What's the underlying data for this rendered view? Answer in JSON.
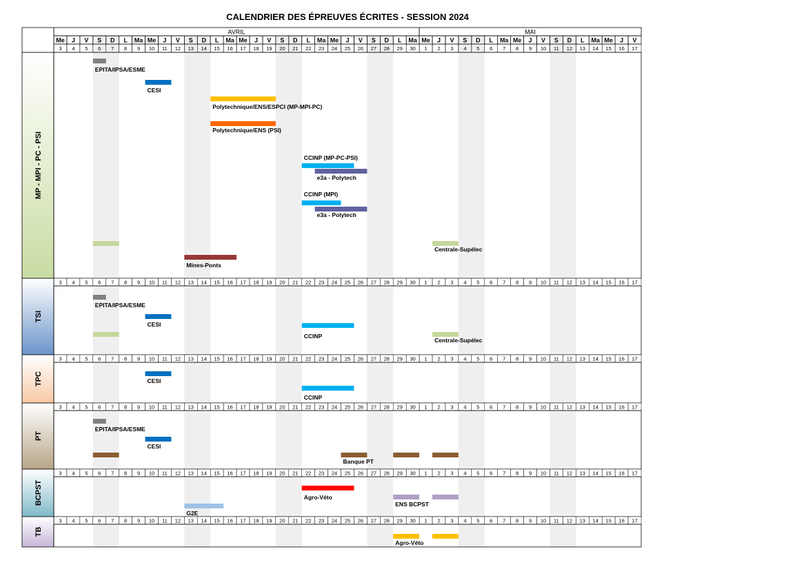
{
  "title": "CALENDRIER DES ÉPREUVES ÉCRITES - SESSION 2024",
  "months": [
    {
      "name": "AVRIL"
    },
    {
      "name": "MAI"
    }
  ],
  "columns": [
    {
      "d": "Me",
      "n": "3"
    },
    {
      "d": "J",
      "n": "4"
    },
    {
      "d": "V",
      "n": "5"
    },
    {
      "d": "S",
      "n": "6"
    },
    {
      "d": "D",
      "n": "7"
    },
    {
      "d": "L",
      "n": "8"
    },
    {
      "d": "Ma",
      "n": "9"
    },
    {
      "d": "Me",
      "n": "10"
    },
    {
      "d": "J",
      "n": "11"
    },
    {
      "d": "V",
      "n": "12"
    },
    {
      "d": "S",
      "n": "13"
    },
    {
      "d": "D",
      "n": "14"
    },
    {
      "d": "L",
      "n": "15"
    },
    {
      "d": "Ma",
      "n": "16"
    },
    {
      "d": "Me",
      "n": "17"
    },
    {
      "d": "J",
      "n": "18"
    },
    {
      "d": "V",
      "n": "19"
    },
    {
      "d": "S",
      "n": "20"
    },
    {
      "d": "D",
      "n": "21"
    },
    {
      "d": "L",
      "n": "22"
    },
    {
      "d": "Ma",
      "n": "23"
    },
    {
      "d": "Me",
      "n": "24"
    },
    {
      "d": "J",
      "n": "25"
    },
    {
      "d": "V",
      "n": "26"
    },
    {
      "d": "S",
      "n": "27"
    },
    {
      "d": "D",
      "n": "28"
    },
    {
      "d": "L",
      "n": "29"
    },
    {
      "d": "Ma",
      "n": "30"
    },
    {
      "d": "Me",
      "n": "1"
    },
    {
      "d": "J",
      "n": "2"
    },
    {
      "d": "V",
      "n": "3"
    },
    {
      "d": "S",
      "n": "4"
    },
    {
      "d": "D",
      "n": "5"
    },
    {
      "d": "L",
      "n": "6"
    },
    {
      "d": "Ma",
      "n": "7"
    },
    {
      "d": "Me",
      "n": "8"
    },
    {
      "d": "J",
      "n": "9"
    },
    {
      "d": "V",
      "n": "10"
    },
    {
      "d": "S",
      "n": "11"
    },
    {
      "d": "D",
      "n": "12"
    },
    {
      "d": "L",
      "n": "13"
    },
    {
      "d": "Ma",
      "n": "14"
    },
    {
      "d": "Me",
      "n": "15"
    },
    {
      "d": "J",
      "n": "16"
    },
    {
      "d": "V",
      "n": "17"
    }
  ],
  "sections": [
    {
      "name": "MP - MPI - PC - PSI",
      "color": "#c9dca3",
      "events": [
        {
          "label": "EPITA/IPSA/ESME",
          "start": "6",
          "end": "6",
          "color": "#808080"
        },
        {
          "label": "CESI",
          "start": "10",
          "end": "11",
          "color": "#0070c0"
        },
        {
          "label": "Polytechnique/ENS/ESPCI (MP-MPI-PC)",
          "start": "15",
          "end": "19",
          "color": "#ffc000"
        },
        {
          "label": "Polytechnique/ENS (PSI)",
          "start": "15",
          "end": "19",
          "color": "#ff6600"
        },
        {
          "label": "CCINP (MP-PC-PSI)",
          "start": "22",
          "end": "25",
          "color": "#00b0f0"
        },
        {
          "label": "e3a - Polytech",
          "start": "23",
          "end": "26",
          "color": "#60629e"
        },
        {
          "label": "CCINP (MPI)",
          "start": "22",
          "end": "24",
          "color": "#00b0f0"
        },
        {
          "label": "e3a - Polytech",
          "start": "23",
          "end": "26",
          "color": "#60629e"
        },
        {
          "label": "Centrale-Supélec",
          "start": "2",
          "end": "3",
          "color": "#c4d79b"
        },
        {
          "label": "",
          "start": "6",
          "end": "7",
          "color": "#c4d79b"
        },
        {
          "label": "Mines-Ponts",
          "start": "13",
          "end": "16",
          "color": "#953735"
        }
      ]
    },
    {
      "name": "TSI",
      "color": "#6b94c9",
      "events": [
        {
          "label": "EPITA/IPSA/ESME",
          "start": "6",
          "end": "6",
          "color": "#808080"
        },
        {
          "label": "CESI",
          "start": "10",
          "end": "11",
          "color": "#0070c0"
        },
        {
          "label": "CCINP",
          "start": "22",
          "end": "25",
          "color": "#00b0f0"
        },
        {
          "label": "Centrale-Supélec",
          "start": "2",
          "end": "3",
          "color": "#c4d79b"
        },
        {
          "label": "",
          "start": "6",
          "end": "7",
          "color": "#c4d79b"
        }
      ]
    },
    {
      "name": "TPC",
      "color": "#f7c9a6",
      "events": [
        {
          "label": "CESI",
          "start": "10",
          "end": "11",
          "color": "#0070c0"
        },
        {
          "label": "CCINP",
          "start": "22",
          "end": "25",
          "color": "#00b0f0"
        }
      ]
    },
    {
      "name": "PT",
      "color": "#b8a688",
      "events": [
        {
          "label": "EPITA/IPSA/ESME",
          "start": "6",
          "end": "6",
          "color": "#808080"
        },
        {
          "label": "CESI",
          "start": "10",
          "end": "11",
          "color": "#0070c0"
        },
        {
          "label": "Banque PT",
          "start": "25",
          "end": "26",
          "color": "#8b5e34"
        },
        {
          "label": "",
          "start": "29",
          "end": "30",
          "color": "#8b5e34"
        },
        {
          "label": "",
          "start": "2",
          "end": "3",
          "color": "#8b5e34"
        },
        {
          "label": "",
          "start": "6",
          "end": "7",
          "color": "#8b5e34"
        }
      ]
    },
    {
      "name": "BCPST",
      "color": "#7fb9c9",
      "events": [
        {
          "label": "Agro-Véto",
          "start": "22",
          "end": "25",
          "color": "#ff0000"
        },
        {
          "label": "ENS BCPST",
          "start": "29",
          "end": "30",
          "color": "#b1a0c7"
        },
        {
          "label": "",
          "start": "2",
          "end": "3",
          "color": "#b1a0c7"
        },
        {
          "label": "G2E",
          "start": "13",
          "end": "15",
          "color": "#9dc3e6"
        }
      ]
    },
    {
      "name": "TB",
      "color": "#c5b6d9",
      "events": [
        {
          "label": "Agro-Véto",
          "start": "29",
          "end": "30",
          "color": "#ffc000"
        },
        {
          "label": "",
          "start": "2",
          "end": "3",
          "color": "#ffc000"
        }
      ]
    }
  ]
}
